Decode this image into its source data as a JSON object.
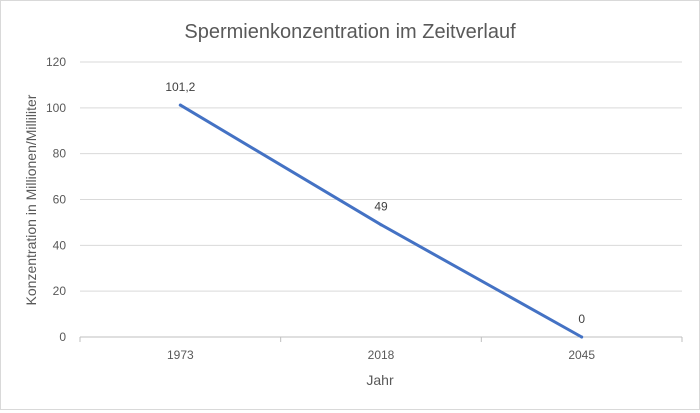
{
  "chart_data": {
    "type": "line",
    "title": "Spermienkonzentration im Zeitverlauf",
    "xlabel": "Jahr",
    "ylabel": "Konzentration in Millionen/Milliliter",
    "categories": [
      "1973",
      "2018",
      "2045"
    ],
    "series": [
      {
        "values": [
          101.2,
          49,
          0
        ],
        "color": "#4472C4"
      }
    ],
    "data_labels": [
      "101,2",
      "49",
      "0"
    ],
    "ylim": [
      0,
      120
    ],
    "yticks": [
      0,
      20,
      40,
      60,
      80,
      100,
      120
    ],
    "grid": true,
    "legend": "none"
  }
}
